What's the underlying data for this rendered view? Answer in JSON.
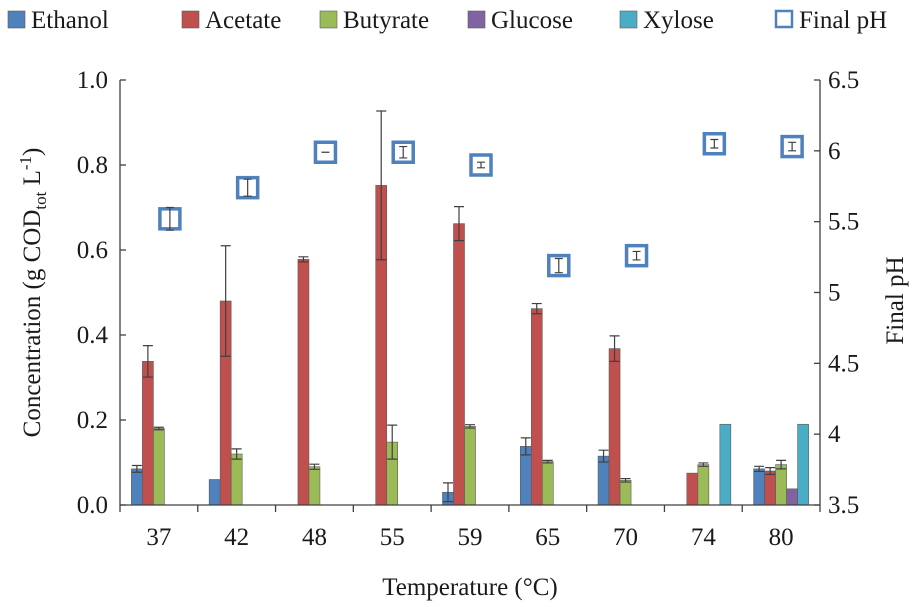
{
  "chart_data": {
    "type": "bar",
    "categories": [
      "37",
      "42",
      "48",
      "55",
      "59",
      "65",
      "70",
      "74",
      "80"
    ],
    "xlabel": "Temperature  (°C)",
    "ylabel_parts": [
      "Concentration  (g COD",
      "tot",
      " L",
      "-1",
      ")"
    ],
    "y2label": "Final  pH",
    "ylim": [
      0,
      1.0
    ],
    "yticks": [
      "0.0",
      "0.2",
      "0.4",
      "0.6",
      "0.8",
      "1.0"
    ],
    "y2lim": [
      3.5,
      6.5
    ],
    "y2ticks": [
      "3.5",
      "4",
      "4.5",
      "5",
      "5.5",
      "6",
      "6.5"
    ],
    "grid": false,
    "legend_position": "top",
    "series": [
      {
        "name": "Ethanol",
        "color": "#4f81bd",
        "values": [
          0.085,
          0.06,
          0,
          0,
          0.03,
          0.138,
          0.115,
          0,
          0.085
        ],
        "errors": [
          0.008,
          0,
          0,
          0,
          0.022,
          0.02,
          0.014,
          0,
          0.006
        ]
      },
      {
        "name": "Acetate",
        "color": "#c0504d",
        "values": [
          0.338,
          0.48,
          0.578,
          0.752,
          0.662,
          0.462,
          0.368,
          0.075,
          0.08
        ],
        "errors": [
          0.037,
          0.13,
          0.006,
          0.175,
          0.04,
          0.012,
          0.03,
          0,
          0.008
        ]
      },
      {
        "name": "Butyrate",
        "color": "#9bbb59",
        "values": [
          0.18,
          0.12,
          0.09,
          0.148,
          0.185,
          0.102,
          0.058,
          0.095,
          0.095
        ],
        "errors": [
          0.003,
          0.012,
          0.006,
          0.04,
          0.004,
          0.003,
          0.004,
          0.004,
          0.01
        ]
      },
      {
        "name": "Glucose",
        "color": "#8064a2",
        "values": [
          0,
          0,
          0,
          0,
          0,
          0,
          0,
          0,
          0.038
        ],
        "errors": [
          0,
          0,
          0,
          0,
          0,
          0,
          0,
          0,
          0
        ]
      },
      {
        "name": "Xylose",
        "color": "#4bacc6",
        "values": [
          0,
          0,
          0,
          0,
          0,
          0,
          0,
          0.19,
          0.19
        ],
        "errors": [
          0,
          0,
          0,
          0,
          0,
          0,
          0,
          0,
          0
        ]
      }
    ],
    "final_ph": {
      "name": "Final pH",
      "color": "#4f81bd",
      "values": [
        5.52,
        5.74,
        5.99,
        5.99,
        5.9,
        5.19,
        5.26,
        6.05,
        6.03
      ],
      "errors": [
        0.08,
        0.06,
        0.0,
        0.04,
        0.02,
        0.05,
        0.03,
        0.03,
        0.03
      ]
    }
  }
}
